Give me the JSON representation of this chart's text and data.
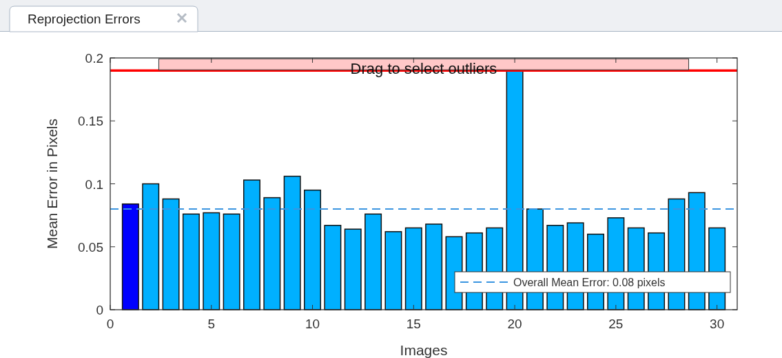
{
  "chart_data": {
    "type": "bar",
    "title": "Reprojection Errors",
    "xlabel": "Images",
    "ylabel": "Mean Error in Pixels",
    "x": [
      1,
      2,
      3,
      4,
      5,
      6,
      7,
      8,
      9,
      10,
      11,
      12,
      13,
      14,
      15,
      16,
      17,
      18,
      19,
      20,
      21,
      22,
      23,
      24,
      25,
      26,
      27,
      28,
      29,
      30
    ],
    "values": [
      0.084,
      0.1,
      0.088,
      0.076,
      0.077,
      0.076,
      0.103,
      0.089,
      0.106,
      0.095,
      0.067,
      0.064,
      0.076,
      0.062,
      0.065,
      0.068,
      0.058,
      0.061,
      0.065,
      0.19,
      0.08,
      0.067,
      0.069,
      0.06,
      0.073,
      0.065,
      0.061,
      0.088,
      0.093,
      0.065
    ],
    "colors": [
      "#0000ff",
      "#00b0ff",
      "#00b0ff",
      "#00b0ff",
      "#00b0ff",
      "#00b0ff",
      "#00b0ff",
      "#00b0ff",
      "#00b0ff",
      "#00b0ff",
      "#00b0ff",
      "#00b0ff",
      "#00b0ff",
      "#00b0ff",
      "#00b0ff",
      "#00b0ff",
      "#00b0ff",
      "#00b0ff",
      "#00b0ff",
      "#00b0ff",
      "#00b0ff",
      "#00b0ff",
      "#00b0ff",
      "#00b0ff",
      "#00b0ff",
      "#00b0ff",
      "#00b0ff",
      "#00b0ff",
      "#00b0ff",
      "#00b0ff"
    ],
    "xlim": [
      0,
      31
    ],
    "xticks": [
      0,
      5,
      10,
      15,
      20,
      25,
      30
    ],
    "ylim": [
      0,
      0.2
    ],
    "yticks": [
      0,
      0.05,
      0.1,
      0.15,
      0.2
    ],
    "ref_lines": [
      {
        "axis": "y",
        "value": 0.08,
        "label": "Overall Mean Error: 0.08 pixels",
        "color": "#3a95e0",
        "line_style": "dashed"
      },
      {
        "axis": "y",
        "value": 0.19,
        "label": "Drag to select outliers",
        "color": "#ff0000",
        "line_style": "solid"
      }
    ],
    "legend": "bottom right"
  }
}
